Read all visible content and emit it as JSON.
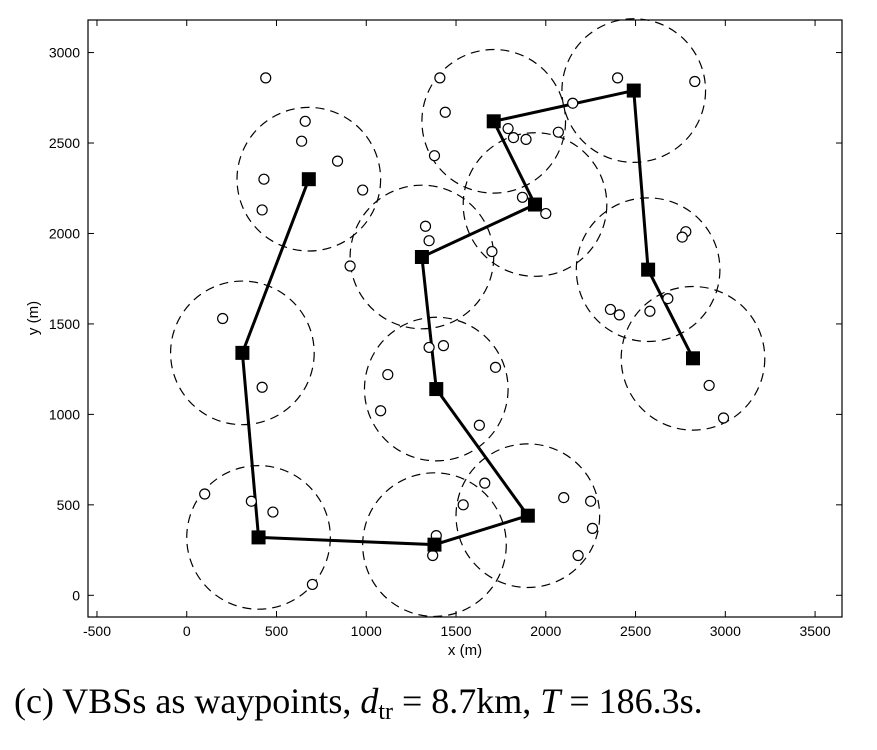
{
  "chart_data": {
    "type": "scatter",
    "xlabel": "x (m)",
    "ylabel": "y (m)",
    "xlim": [
      -550,
      3650
    ],
    "ylim": [
      -120,
      3180
    ],
    "xticks": [
      -500,
      0,
      500,
      1000,
      1500,
      2000,
      2500,
      3000,
      3500
    ],
    "yticks": [
      0,
      500,
      1000,
      1500,
      2000,
      2500,
      3000
    ],
    "grid": false,
    "coverage_radius": 400,
    "vbs": [
      {
        "x": 680,
        "y": 2300
      },
      {
        "x": 310,
        "y": 1340
      },
      {
        "x": 400,
        "y": 320
      },
      {
        "x": 1380,
        "y": 280
      },
      {
        "x": 1900,
        "y": 440
      },
      {
        "x": 1390,
        "y": 1140
      },
      {
        "x": 1310,
        "y": 1870
      },
      {
        "x": 1940,
        "y": 2160
      },
      {
        "x": 1710,
        "y": 2620
      },
      {
        "x": 2490,
        "y": 2790
      },
      {
        "x": 2570,
        "y": 1800
      },
      {
        "x": 2820,
        "y": 1310
      }
    ],
    "trajectory_order": [
      0,
      1,
      2,
      3,
      4,
      5,
      6,
      7,
      8,
      9,
      10,
      11
    ],
    "users": [
      {
        "x": 440,
        "y": 2860
      },
      {
        "x": 660,
        "y": 2620
      },
      {
        "x": 640,
        "y": 2510
      },
      {
        "x": 840,
        "y": 2400
      },
      {
        "x": 980,
        "y": 2240
      },
      {
        "x": 430,
        "y": 2300
      },
      {
        "x": 420,
        "y": 2130
      },
      {
        "x": 200,
        "y": 1530
      },
      {
        "x": 420,
        "y": 1150
      },
      {
        "x": 100,
        "y": 560
      },
      {
        "x": 360,
        "y": 520
      },
      {
        "x": 480,
        "y": 460
      },
      {
        "x": 700,
        "y": 60
      },
      {
        "x": 1390,
        "y": 330
      },
      {
        "x": 1370,
        "y": 220
      },
      {
        "x": 1540,
        "y": 500
      },
      {
        "x": 1660,
        "y": 620
      },
      {
        "x": 2100,
        "y": 540
      },
      {
        "x": 2250,
        "y": 520
      },
      {
        "x": 2260,
        "y": 370
      },
      {
        "x": 2180,
        "y": 220
      },
      {
        "x": 1120,
        "y": 1220
      },
      {
        "x": 1080,
        "y": 1020
      },
      {
        "x": 1350,
        "y": 1370
      },
      {
        "x": 1430,
        "y": 1380
      },
      {
        "x": 1720,
        "y": 1260
      },
      {
        "x": 1630,
        "y": 940
      },
      {
        "x": 910,
        "y": 1820
      },
      {
        "x": 1330,
        "y": 2040
      },
      {
        "x": 1350,
        "y": 1960
      },
      {
        "x": 1700,
        "y": 1900
      },
      {
        "x": 1870,
        "y": 2200
      },
      {
        "x": 2000,
        "y": 2110
      },
      {
        "x": 1410,
        "y": 2860
      },
      {
        "x": 1440,
        "y": 2670
      },
      {
        "x": 1380,
        "y": 2430
      },
      {
        "x": 1790,
        "y": 2580
      },
      {
        "x": 1820,
        "y": 2530
      },
      {
        "x": 1890,
        "y": 2520
      },
      {
        "x": 2070,
        "y": 2560
      },
      {
        "x": 2150,
        "y": 2720
      },
      {
        "x": 2400,
        "y": 2860
      },
      {
        "x": 2830,
        "y": 2840
      },
      {
        "x": 2780,
        "y": 2010
      },
      {
        "x": 2760,
        "y": 1980
      },
      {
        "x": 2360,
        "y": 1580
      },
      {
        "x": 2410,
        "y": 1550
      },
      {
        "x": 2580,
        "y": 1570
      },
      {
        "x": 2680,
        "y": 1640
      },
      {
        "x": 2910,
        "y": 1160
      },
      {
        "x": 2990,
        "y": 980
      }
    ]
  },
  "caption": {
    "prefix": "(c) VBSs as waypoints, ",
    "d_symbol": "d",
    "d_sub": "tr",
    "d_value": " = 8.7km, ",
    "t_symbol": "T",
    "t_value": " = 186.3s."
  }
}
